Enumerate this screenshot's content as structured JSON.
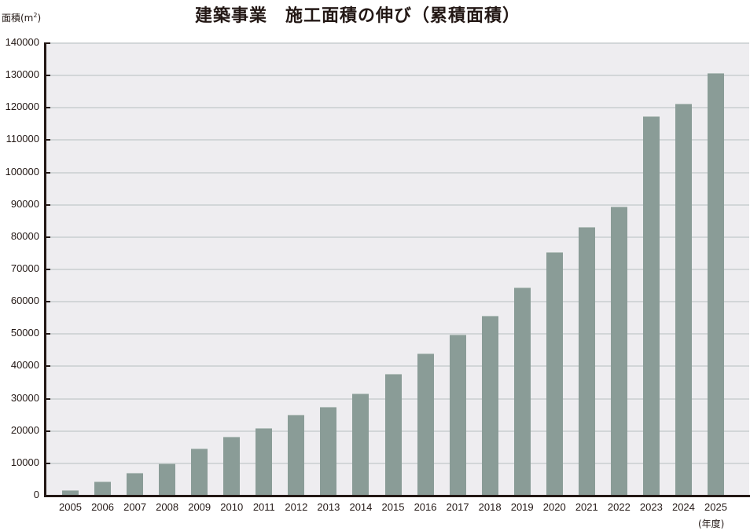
{
  "title": "建築事業　施工面積の伸び（累積面積）",
  "y_axis_label": "面積(m",
  "y_axis_label_sup": "2",
  "y_axis_label_close": ")",
  "x_axis_unit": "(年度)",
  "colors": {
    "bar": "#8a9c97",
    "plot_bg": "#eeedf0",
    "grid": "#d2d6d8",
    "axis": "#231815"
  },
  "y_ticks": [
    "140000",
    "130000",
    "120000",
    "110000",
    "100000",
    "90000",
    "80000",
    "70000",
    "60000",
    "50000",
    "40000",
    "30000",
    "20000",
    "10000",
    "0"
  ],
  "chart_data": {
    "type": "bar",
    "title": "建築事業　施工面積の伸び（累積面積）",
    "xlabel": "(年度)",
    "ylabel": "面積(m²)",
    "ylim": [
      0,
      140000
    ],
    "y_tick_step": 10000,
    "grid": true,
    "legend": null,
    "categories": [
      "2005",
      "2006",
      "2007",
      "2008",
      "2009",
      "2010",
      "2011",
      "2012",
      "2013",
      "2014",
      "2015",
      "2016",
      "2017",
      "2018",
      "2019",
      "2020",
      "2021",
      "2022",
      "2023",
      "2024",
      "2025"
    ],
    "values": [
      1800,
      4400,
      7000,
      10000,
      14500,
      18200,
      21000,
      25000,
      27400,
      31500,
      37700,
      43900,
      49800,
      55600,
      64300,
      75400,
      83200,
      89500,
      117300,
      121300,
      130700
    ]
  }
}
